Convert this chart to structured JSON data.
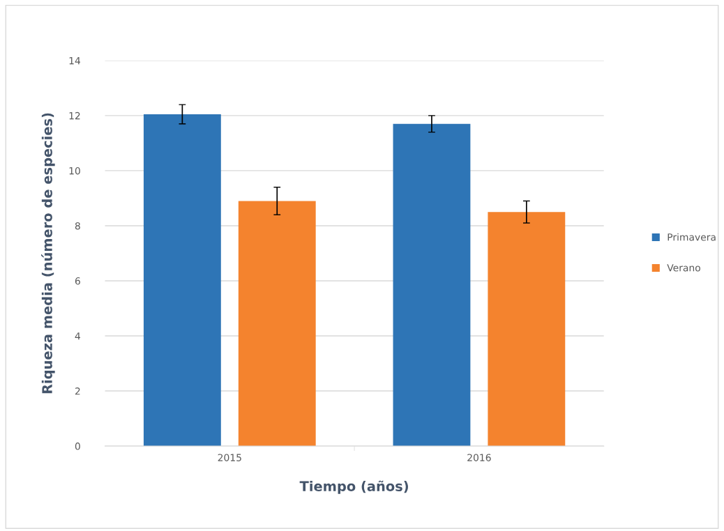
{
  "chart_data": {
    "type": "bar",
    "xlabel": "Tiempo (años)",
    "ylabel": "Riqueza media (número de especies)",
    "categories": [
      "2015",
      "2016"
    ],
    "series": [
      {
        "name": "Primavera",
        "color": "#2e75b6",
        "values": [
          12.05,
          11.7
        ],
        "errors": [
          0.35,
          0.3
        ]
      },
      {
        "name": "Verano",
        "color": "#f4832e",
        "values": [
          8.9,
          8.5
        ],
        "errors": [
          0.5,
          0.4
        ]
      }
    ],
    "ylim": [
      0,
      14
    ],
    "yticks": [
      0,
      2,
      4,
      6,
      8,
      10,
      12,
      14
    ],
    "grid": "y",
    "legend": "right"
  }
}
